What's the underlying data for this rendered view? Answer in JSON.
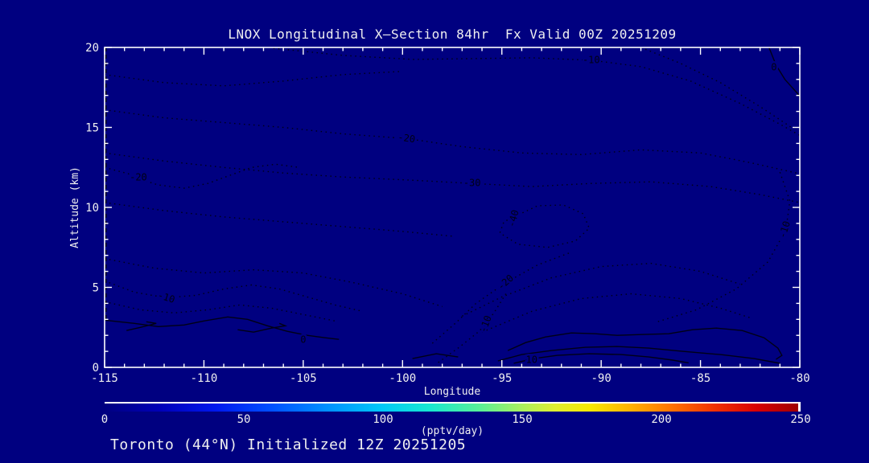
{
  "title": "LNOX Longitudinal X—Section 84hr  Fx Valid 00Z 20251209",
  "footer": "Toronto (44°N) Initialized 12Z 20251205",
  "colors": {
    "background": "#000080",
    "frame": "#ffffff",
    "text": "#f0f0f0",
    "contour": "#000016"
  },
  "chart_data": {
    "type": "contour",
    "title": "LNOX Longitudinal X—Section 84hr  Fx Valid 00Z 20251209",
    "xlabel": "Longitude",
    "ylabel": "Altitude (km)",
    "xlim": [
      -115,
      -80
    ],
    "ylim": [
      0,
      20
    ],
    "x_major_ticks": [
      -115,
      -110,
      -105,
      -100,
      -95,
      -90,
      -85,
      -80
    ],
    "x_minor_step": 1,
    "y_major_ticks": [
      0,
      5,
      10,
      15,
      20
    ],
    "y_minor_step": 1,
    "grid": false,
    "negative_style": "dotted",
    "positive_style": "solid",
    "contour_labels": [
      {
        "text": "-10",
        "lon": -90.5,
        "alt": 19.2,
        "rot": 0
      },
      {
        "text": "-20",
        "lon": -99.8,
        "alt": 14.3,
        "rot": 8
      },
      {
        "text": "-30",
        "lon": -96.5,
        "alt": 11.5,
        "rot": 0
      },
      {
        "text": "-40",
        "lon": -94.4,
        "alt": 9.3,
        "rot": -75
      },
      {
        "text": "-20",
        "lon": -113.3,
        "alt": 11.85,
        "rot": 0
      },
      {
        "text": "-10",
        "lon": -111.9,
        "alt": 4.35,
        "rot": 18
      },
      {
        "text": "-20",
        "lon": -94.8,
        "alt": 5.3,
        "rot": -42
      },
      {
        "text": "-10",
        "lon": -95.8,
        "alt": 2.7,
        "rot": -70
      },
      {
        "text": "-10",
        "lon": -80.75,
        "alt": 8.6,
        "rot": -72
      },
      {
        "text": "0",
        "lon": -105.0,
        "alt": 1.72,
        "rot": 0
      },
      {
        "text": "0",
        "lon": -81.3,
        "alt": 18.75,
        "rot": 0
      },
      {
        "text": "10",
        "lon": -93.5,
        "alt": 0.45,
        "rot": 0
      }
    ],
    "contours": [
      {
        "level": 0,
        "style": "dashed",
        "points": [
          [
            -114.93,
            20
          ],
          [
            -114.93,
            2.95
          ]
        ]
      },
      {
        "level": 0,
        "style": "solid",
        "points": [
          [
            -115,
            2.95
          ],
          [
            -113.5,
            2.75
          ],
          [
            -112.3,
            2.55
          ],
          [
            -111,
            2.65
          ],
          [
            -110,
            2.9
          ],
          [
            -108.8,
            3.15
          ],
          [
            -107.8,
            3.0
          ],
          [
            -106.8,
            2.6
          ],
          [
            -105.8,
            2.25
          ],
          [
            -104.8,
            2.0
          ],
          [
            -103.9,
            1.85
          ],
          [
            -103.2,
            1.75
          ]
        ]
      },
      {
        "level": 0,
        "style": "solid",
        "points": [
          [
            -113.9,
            2.3
          ],
          [
            -113.2,
            2.5
          ],
          [
            -112.4,
            2.75
          ],
          [
            -112.9,
            2.85
          ]
        ]
      },
      {
        "level": 0,
        "style": "solid",
        "points": [
          [
            -108.3,
            2.35
          ],
          [
            -107.5,
            2.2
          ],
          [
            -106.6,
            2.45
          ],
          [
            -105.9,
            2.6
          ],
          [
            -106.2,
            2.75
          ]
        ]
      },
      {
        "level": 0,
        "style": "solid",
        "points": [
          [
            -99.5,
            0.55
          ],
          [
            -98.3,
            0.85
          ],
          [
            -97.2,
            0.65
          ]
        ]
      },
      {
        "level": 0,
        "style": "solid",
        "points": [
          [
            -81.55,
            20
          ],
          [
            -81.2,
            18.9
          ],
          [
            -80.75,
            18.0
          ],
          [
            -80.1,
            17.1
          ],
          [
            -80,
            16.9
          ]
        ]
      },
      {
        "level": 0,
        "style": "solid",
        "points": [
          [
            -94.7,
            1.05
          ],
          [
            -93.8,
            1.55
          ],
          [
            -92.8,
            1.9
          ],
          [
            -91.5,
            2.15
          ],
          [
            -90.3,
            2.1
          ],
          [
            -89.2,
            2.0
          ],
          [
            -88.0,
            2.05
          ],
          [
            -86.6,
            2.1
          ],
          [
            -85.4,
            2.35
          ],
          [
            -84.2,
            2.45
          ],
          [
            -82.9,
            2.3
          ],
          [
            -81.8,
            1.85
          ],
          [
            -81.1,
            1.2
          ],
          [
            -80.9,
            0.75
          ],
          [
            -81.2,
            0.5
          ]
        ]
      },
      {
        "level": 5,
        "style": "solid",
        "points": [
          [
            -95.2,
            0.4
          ],
          [
            -94.0,
            0.8
          ],
          [
            -92.5,
            1.05
          ],
          [
            -90.8,
            1.25
          ],
          [
            -89.2,
            1.3
          ],
          [
            -87.6,
            1.2
          ],
          [
            -85.9,
            1.0
          ],
          [
            -84.0,
            0.8
          ],
          [
            -82.3,
            0.55
          ],
          [
            -81.0,
            0.25
          ]
        ]
      },
      {
        "level": 10,
        "style": "solid",
        "points": [
          [
            -94.4,
            0.25
          ],
          [
            -93.4,
            0.55
          ],
          [
            -92.2,
            0.75
          ],
          [
            -90.6,
            0.85
          ],
          [
            -89.0,
            0.8
          ],
          [
            -87.6,
            0.65
          ],
          [
            -86.4,
            0.45
          ],
          [
            -85.6,
            0.28
          ]
        ]
      },
      {
        "level": -10,
        "style": "dotted",
        "points": [
          [
            -106.5,
            19.95
          ],
          [
            -103,
            19.5
          ],
          [
            -99.5,
            19.25
          ],
          [
            -96.5,
            19.3
          ],
          [
            -93.5,
            19.35
          ],
          [
            -90.5,
            19.2
          ],
          [
            -88,
            18.8
          ],
          [
            -85.5,
            17.9
          ],
          [
            -83,
            16.5
          ],
          [
            -81,
            15.2
          ],
          [
            -80,
            14.5
          ]
        ]
      },
      {
        "level": -10,
        "style": "dotted",
        "points": [
          [
            -88,
            20
          ],
          [
            -86,
            19.0
          ],
          [
            -84,
            17.8
          ],
          [
            -82,
            16.3
          ],
          [
            -80.3,
            14.9
          ]
        ]
      },
      {
        "level": -20,
        "style": "dotted",
        "points": [
          [
            -115,
            16.1
          ],
          [
            -112,
            15.6
          ],
          [
            -109,
            15.3
          ],
          [
            -106,
            15.0
          ],
          [
            -103,
            14.6
          ],
          [
            -99.8,
            14.3
          ],
          [
            -97,
            13.8
          ],
          [
            -94,
            13.4
          ],
          [
            -91,
            13.3
          ],
          [
            -88,
            13.6
          ],
          [
            -85,
            13.4
          ],
          [
            -82.5,
            12.8
          ],
          [
            -80,
            12.1
          ]
        ]
      },
      {
        "level": -30,
        "style": "dotted",
        "points": [
          [
            -115,
            13.4
          ],
          [
            -112,
            12.9
          ],
          [
            -109,
            12.5
          ],
          [
            -106,
            12.15
          ],
          [
            -103,
            11.9
          ],
          [
            -99.5,
            11.7
          ],
          [
            -96.5,
            11.5
          ],
          [
            -93.5,
            11.3
          ],
          [
            -90.5,
            11.5
          ],
          [
            -87.5,
            11.6
          ],
          [
            -84.5,
            11.3
          ],
          [
            -82,
            10.8
          ],
          [
            -80,
            10.3
          ]
        ]
      },
      {
        "level": -40,
        "style": "dotted",
        "points": [
          [
            -94.4,
            9.4
          ],
          [
            -93.2,
            10.1
          ],
          [
            -91.9,
            10.15
          ],
          [
            -90.9,
            9.6
          ],
          [
            -90.6,
            8.7
          ],
          [
            -91.3,
            7.9
          ],
          [
            -92.7,
            7.5
          ],
          [
            -94.2,
            7.7
          ],
          [
            -95.1,
            8.4
          ],
          [
            -94.9,
            9.1
          ],
          [
            -94.4,
            9.4
          ]
        ]
      },
      {
        "level": -20,
        "style": "dotted",
        "points": [
          [
            -115,
            12.5
          ],
          [
            -113.8,
            12.1
          ],
          [
            -113.3,
            11.8
          ],
          [
            -112.3,
            11.4
          ],
          [
            -111,
            11.2
          ],
          [
            -109.8,
            11.5
          ],
          [
            -108.7,
            12.0
          ],
          [
            -107.6,
            12.5
          ],
          [
            -106.4,
            12.7
          ],
          [
            -105.2,
            12.5
          ]
        ]
      },
      {
        "level": -30,
        "style": "dotted",
        "points": [
          [
            -115,
            10.3
          ],
          [
            -112,
            9.8
          ],
          [
            -109,
            9.4
          ],
          [
            -106,
            9.1
          ],
          [
            -103,
            8.8
          ],
          [
            -100,
            8.5
          ],
          [
            -97.5,
            8.2
          ]
        ]
      },
      {
        "level": -10,
        "style": "dotted",
        "points": [
          [
            -115,
            5.4
          ],
          [
            -113.5,
            4.7
          ],
          [
            -111.9,
            4.35
          ],
          [
            -110.4,
            4.5
          ],
          [
            -109,
            4.9
          ],
          [
            -107.6,
            5.15
          ],
          [
            -106.2,
            4.9
          ],
          [
            -104.8,
            4.4
          ],
          [
            -103.4,
            3.9
          ],
          [
            -102,
            3.5
          ]
        ]
      },
      {
        "level": -20,
        "style": "dotted",
        "points": [
          [
            -115,
            6.8
          ],
          [
            -112.5,
            6.2
          ],
          [
            -110,
            5.9
          ],
          [
            -107.5,
            6.1
          ],
          [
            -105,
            5.9
          ],
          [
            -102.5,
            5.3
          ],
          [
            -100,
            4.6
          ],
          [
            -98,
            3.8
          ]
        ]
      },
      {
        "level": -10,
        "style": "dotted",
        "points": [
          [
            -115,
            4.1
          ],
          [
            -113.2,
            3.6
          ],
          [
            -111.5,
            3.4
          ],
          [
            -109.8,
            3.6
          ],
          [
            -108.2,
            3.9
          ],
          [
            -106.6,
            3.7
          ],
          [
            -105,
            3.3
          ],
          [
            -103.4,
            2.9
          ]
        ]
      },
      {
        "level": -20,
        "style": "dotted",
        "points": [
          [
            -98.5,
            1.5
          ],
          [
            -97.3,
            2.8
          ],
          [
            -96.3,
            4.0
          ],
          [
            -94.8,
            5.3
          ],
          [
            -93.2,
            6.4
          ],
          [
            -91.5,
            7.2
          ]
        ]
      },
      {
        "level": -10,
        "style": "dotted",
        "points": [
          [
            -98.2,
            0.3
          ],
          [
            -97.1,
            1.3
          ],
          [
            -96.2,
            2.2
          ],
          [
            -95.8,
            2.7
          ],
          [
            -95.3,
            3.6
          ],
          [
            -94.8,
            4.6
          ]
        ]
      },
      {
        "level": -10,
        "style": "dotted",
        "points": [
          [
            -81.0,
            12.2
          ],
          [
            -80.5,
            10.4
          ],
          [
            -80.7,
            8.6
          ],
          [
            -81.6,
            6.6
          ],
          [
            -83.2,
            4.9
          ],
          [
            -85.2,
            3.6
          ],
          [
            -87.3,
            2.8
          ]
        ]
      },
      {
        "level": -10,
        "style": "dotted",
        "points": [
          [
            -115,
            18.3
          ],
          [
            -112,
            17.8
          ],
          [
            -109,
            17.6
          ],
          [
            -106,
            17.9
          ],
          [
            -103,
            18.3
          ],
          [
            -100,
            18.5
          ]
        ]
      },
      {
        "level": -10,
        "style": "dotted",
        "points": [
          [
            -97,
            3.2
          ],
          [
            -95,
            4.4
          ],
          [
            -92.5,
            5.6
          ],
          [
            -90,
            6.3
          ],
          [
            -87.5,
            6.5
          ],
          [
            -85,
            6.0
          ],
          [
            -83,
            5.2
          ]
        ]
      },
      {
        "level": -10,
        "style": "dotted",
        "points": [
          [
            -96,
            2.2
          ],
          [
            -93.5,
            3.5
          ],
          [
            -91,
            4.3
          ],
          [
            -88.5,
            4.6
          ],
          [
            -86,
            4.3
          ],
          [
            -84,
            3.7
          ],
          [
            -82.5,
            3.1
          ]
        ]
      }
    ],
    "colorbar": {
      "min": 0,
      "max": 250,
      "ticks": [
        0,
        50,
        100,
        150,
        200,
        250
      ],
      "unit_label": "(pptv/day)",
      "gradient_stops": [
        [
          0.0,
          "#000080"
        ],
        [
          0.08,
          "#0000b8"
        ],
        [
          0.16,
          "#0018ee"
        ],
        [
          0.24,
          "#0050ff"
        ],
        [
          0.32,
          "#0090ff"
        ],
        [
          0.4,
          "#00c8f8"
        ],
        [
          0.47,
          "#18e8d0"
        ],
        [
          0.54,
          "#58f098"
        ],
        [
          0.6,
          "#a8f060"
        ],
        [
          0.65,
          "#e0ee30"
        ],
        [
          0.7,
          "#f8e800"
        ],
        [
          0.76,
          "#ffb000"
        ],
        [
          0.82,
          "#ff7000"
        ],
        [
          0.88,
          "#f03000"
        ],
        [
          0.94,
          "#d80000"
        ],
        [
          1.0,
          "#a00000"
        ]
      ]
    }
  }
}
